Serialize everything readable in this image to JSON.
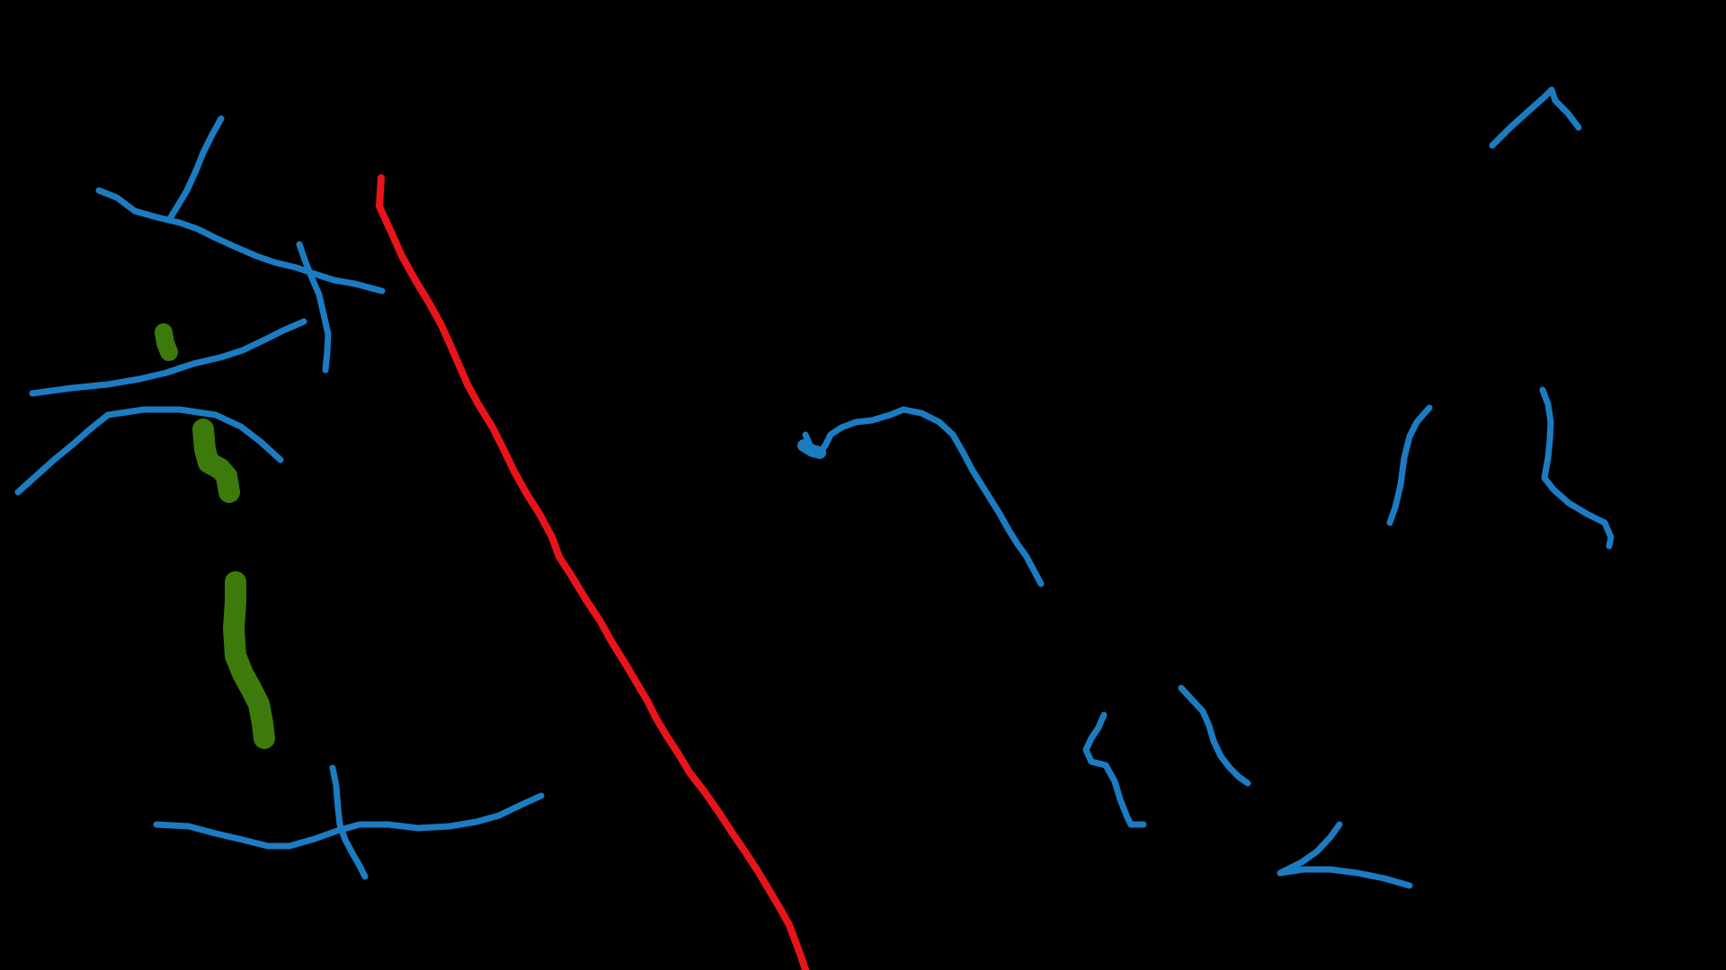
{
  "canvas": {
    "background": "#000000"
  },
  "colors": {
    "blue": "#1c7cc2",
    "red": "#e8141a",
    "green": "#3d7a0c"
  }
}
